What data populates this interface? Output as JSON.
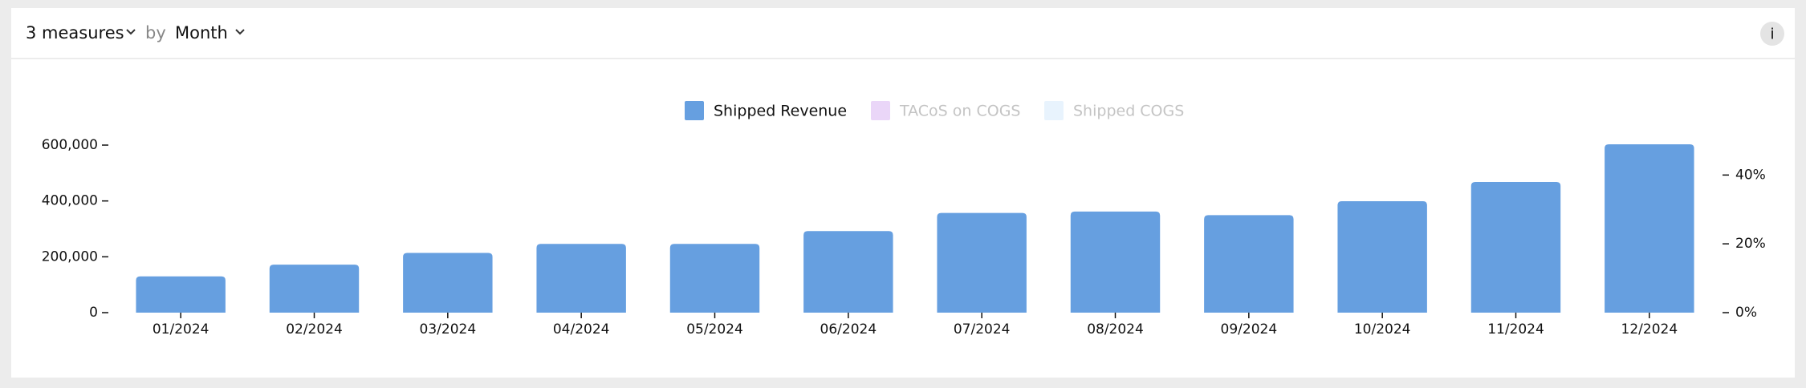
{
  "header": {
    "measures": "3 measures",
    "by": "by",
    "dimension": "Month",
    "info": "i"
  },
  "chart_data": {
    "type": "bar",
    "categories": [
      "01/2024",
      "02/2024",
      "03/2024",
      "04/2024",
      "05/2024",
      "06/2024",
      "07/2024",
      "08/2024",
      "09/2024",
      "10/2024",
      "11/2024",
      "12/2024"
    ],
    "series": [
      {
        "name": "Shipped Revenue",
        "color": "#669fe0",
        "visible": true,
        "values": [
          130000,
          172000,
          214000,
          246000,
          246000,
          292000,
          357000,
          362000,
          349000,
          399000,
          468000,
          603000
        ]
      },
      {
        "name": "TACoS on COGS",
        "color": "#ead6f8",
        "visible": false,
        "axis": "y2"
      },
      {
        "name": "Shipped COGS",
        "color": "#e8f3fd",
        "visible": false
      }
    ],
    "ylim": [
      0,
      600000
    ],
    "yticks": [
      0,
      {
        "value": 200000,
        "label": "200,000"
      },
      {
        "value": 400000,
        "label": "400,000"
      },
      {
        "value": 600000,
        "label": "600,000"
      }
    ],
    "y2lim": [
      0,
      48.7
    ],
    "y2ticks": [
      {
        "value": 0,
        "label": "0%"
      },
      {
        "value": 20,
        "label": "20%"
      },
      {
        "value": 40,
        "label": "40%"
      }
    ],
    "legend": "top",
    "grid": false
  }
}
